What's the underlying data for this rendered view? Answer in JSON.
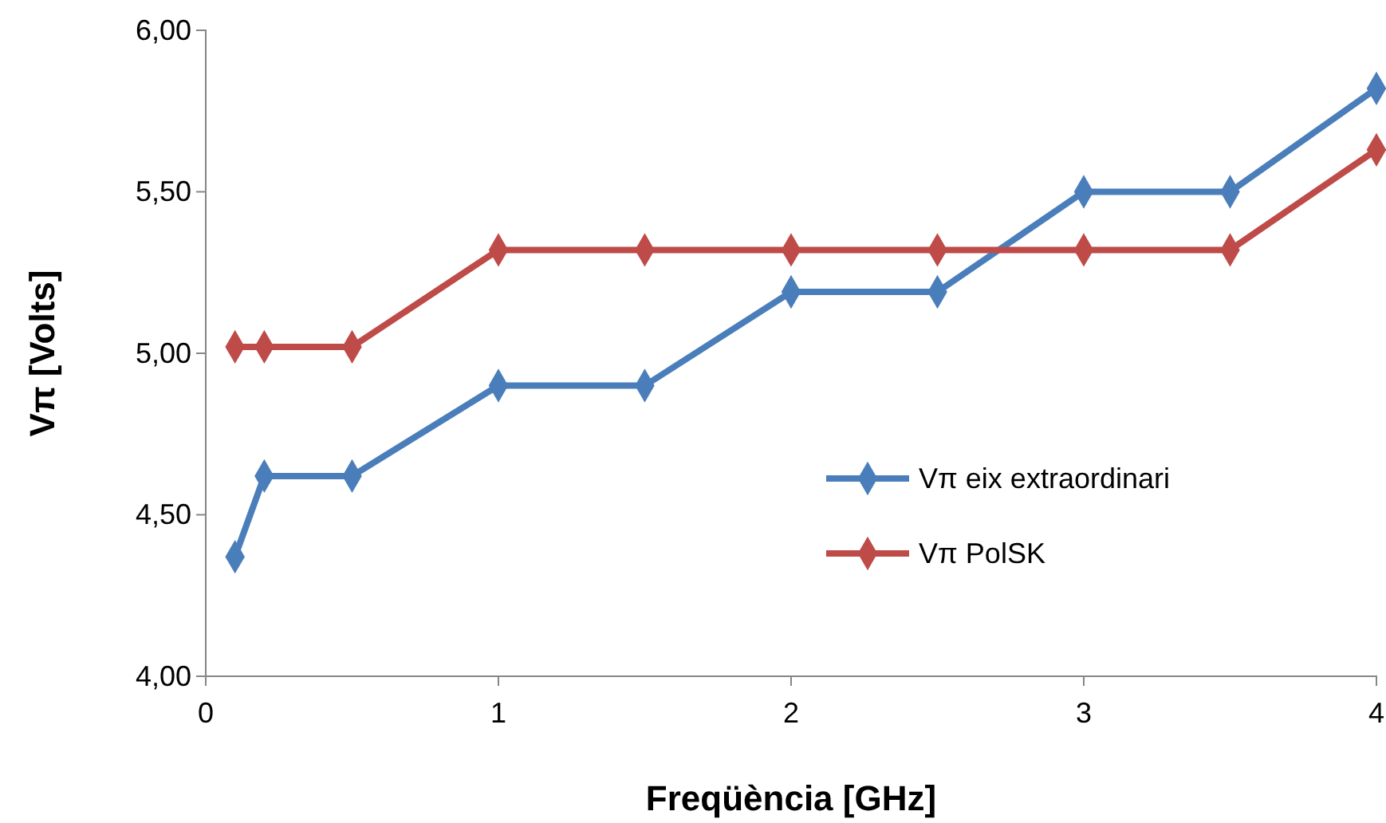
{
  "chart_data": {
    "type": "line",
    "xlabel": "Freqüència [GHz]",
    "ylabel": "Vπ  [Volts]",
    "x": [
      0.1,
      0.2,
      0.5,
      1,
      1.5,
      2,
      2.5,
      3,
      3.5,
      4
    ],
    "series": [
      {
        "name": "Vπ eix extraordinari",
        "color": "#4a7ebb",
        "values": [
          4.37,
          4.62,
          4.62,
          4.9,
          4.9,
          5.19,
          5.19,
          5.5,
          5.5,
          5.82
        ]
      },
      {
        "name": "Vπ PolSK",
        "color": "#be4b48",
        "values": [
          5.02,
          5.02,
          5.02,
          5.32,
          5.32,
          5.32,
          5.32,
          5.32,
          5.32,
          5.63
        ]
      }
    ],
    "xlim": [
      0,
      4
    ],
    "xticks": [
      0,
      1,
      2,
      3,
      4
    ],
    "ylim": [
      4,
      6
    ],
    "yticks": [
      {
        "value": 4,
        "label": "4,00"
      },
      {
        "value": 4.5,
        "label": "4,50"
      },
      {
        "value": 5,
        "label": "5,00"
      },
      {
        "value": 5.5,
        "label": "5,50"
      },
      {
        "value": 6,
        "label": "6,00"
      }
    ],
    "legend": "right",
    "marker": "diamond",
    "line_style": "solid"
  }
}
